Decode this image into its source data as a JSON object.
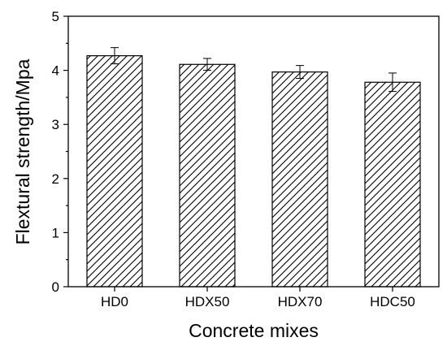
{
  "chart_data": {
    "type": "bar",
    "xlabel": "Concrete mixes",
    "ylabel": "Flextural strength/Mpa",
    "categories": [
      "HD0",
      "HDX50",
      "HDX70",
      "HDC50"
    ],
    "values": [
      4.27,
      4.11,
      3.97,
      3.78
    ],
    "errors": [
      0.15,
      0.11,
      0.12,
      0.17
    ],
    "ylim": [
      0,
      5
    ],
    "yticks": [
      "0",
      "1",
      "2",
      "3",
      "4",
      "5"
    ],
    "bar_style": "diagonal-hatch",
    "grid": false,
    "legend": "none"
  }
}
